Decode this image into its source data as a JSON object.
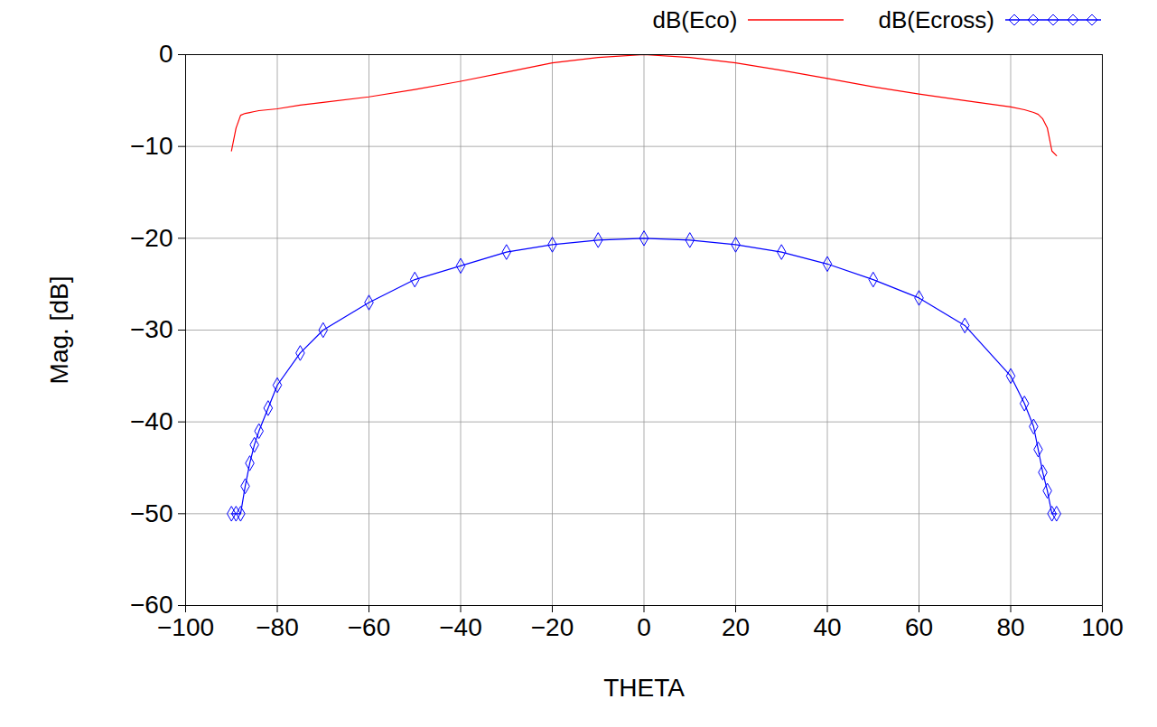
{
  "chart_data": {
    "type": "line",
    "x_label": "THETA",
    "y_label": "Mag. [dB]",
    "x": [
      -90,
      -89,
      -88,
      -87,
      -86,
      -85,
      -84,
      -82,
      -80,
      -75,
      -70,
      -60,
      -50,
      -40,
      -30,
      -20,
      -10,
      0,
      10,
      20,
      30,
      40,
      50,
      60,
      70,
      80,
      83,
      85,
      86,
      87,
      88,
      89,
      90
    ],
    "series": [
      {
        "name": "dB(Eco)",
        "color": "#ff0000",
        "line_style": "solid",
        "values": [
          -10.5,
          -8,
          -6.6,
          -6.4,
          -6.3,
          -6.2,
          -6.1,
          -6,
          -5.9,
          -5.5,
          -5.2,
          -4.6,
          -3.8,
          -2.9,
          -1.9,
          -0.9,
          -0.3,
          0,
          -0.3,
          -0.9,
          -1.7,
          -2.6,
          -3.5,
          -4.3,
          -5,
          -5.7,
          -6,
          -6.3,
          -6.5,
          -7,
          -8,
          -10.5,
          -11
        ]
      },
      {
        "name": "dB(Ecross)",
        "color": "#0000ff",
        "line_style": "solid",
        "marker": "diamond",
        "values": [
          -50,
          -50,
          -50,
          -47,
          -44.5,
          -42.5,
          -41,
          -38.5,
          -36,
          -32.5,
          -30,
          -27,
          -24.5,
          -23,
          -21.5,
          -20.7,
          -20.2,
          -20,
          -20.2,
          -20.7,
          -21.5,
          -22.8,
          -24.5,
          -26.5,
          -29.5,
          -35,
          -38,
          -40.5,
          -43,
          -45.5,
          -47.5,
          -50,
          -50
        ]
      }
    ],
    "xlim": [
      -100,
      100
    ],
    "xticks": [
      -100,
      -80,
      -60,
      -40,
      -20,
      0,
      20,
      40,
      60,
      80,
      100
    ],
    "ylim": [
      -60,
      0
    ],
    "yticks": [
      -60,
      -50,
      -40,
      -30,
      -20,
      -10,
      0
    ],
    "grid": true,
    "legend": "top"
  }
}
